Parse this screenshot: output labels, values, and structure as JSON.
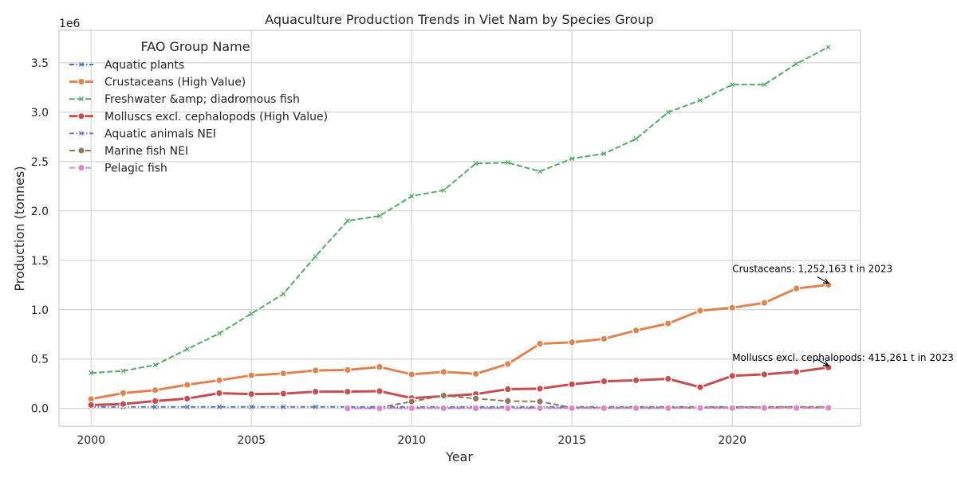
{
  "chart_data": {
    "type": "line",
    "title": "Aquaculture Production Trends in Viet Nam by Species Group",
    "xlabel": "Year",
    "ylabel": "Production (tonnes)",
    "y_scale_label": "1e6",
    "xlim": [
      1999,
      2024
    ],
    "ylim": [
      -180000,
      3830000
    ],
    "x_ticks": [
      2000,
      2005,
      2010,
      2015,
      2020
    ],
    "y_ticks": [
      0,
      500000,
      1000000,
      1500000,
      2000000,
      2500000,
      3000000,
      3500000
    ],
    "y_tick_labels": [
      "0.0",
      "0.5",
      "1.0",
      "1.5",
      "2.0",
      "2.5",
      "3.0",
      "3.5"
    ],
    "grid": true,
    "legend_title": "FAO Group Name",
    "legend_position": "upper-left",
    "series": [
      {
        "name": "Aquatic plants",
        "color": "#4c72b0",
        "style": "dashdot",
        "width": 2,
        "marker": "x",
        "x": [
          2000,
          2001,
          2002,
          2003,
          2004,
          2005,
          2006,
          2007,
          2008,
          2009,
          2010,
          2011,
          2012,
          2013,
          2014,
          2015,
          2016,
          2017,
          2018,
          2019,
          2020,
          2021,
          2022,
          2023
        ],
        "values": [
          15000,
          15000,
          15000,
          16000,
          16000,
          16000,
          16000,
          16000,
          16000,
          16000,
          16000,
          16000,
          16000,
          16000,
          16000,
          16000,
          16000,
          16000,
          16000,
          16000,
          16000,
          16000,
          16000,
          16000
        ]
      },
      {
        "name": "Crustaceans (High Value)",
        "color": "#dd8452",
        "style": "solid",
        "width": 3,
        "marker": "circle",
        "x": [
          2000,
          2001,
          2002,
          2003,
          2004,
          2005,
          2006,
          2007,
          2008,
          2009,
          2010,
          2011,
          2012,
          2013,
          2014,
          2015,
          2016,
          2017,
          2018,
          2019,
          2020,
          2021,
          2022,
          2023
        ],
        "values": [
          95000,
          155000,
          185000,
          240000,
          285000,
          335000,
          355000,
          385000,
          390000,
          420000,
          345000,
          370000,
          350000,
          450000,
          655000,
          670000,
          705000,
          790000,
          860000,
          990000,
          1020000,
          1070000,
          1215000,
          1252163
        ]
      },
      {
        "name": "Freshwater &amp; diadromous fish",
        "color": "#55a868",
        "style": "dashed",
        "width": 2,
        "marker": "x",
        "x": [
          2000,
          2001,
          2002,
          2003,
          2004,
          2005,
          2006,
          2007,
          2008,
          2009,
          2010,
          2011,
          2012,
          2013,
          2014,
          2015,
          2016,
          2017,
          2018,
          2019,
          2020,
          2021,
          2022,
          2023
        ],
        "values": [
          360000,
          380000,
          440000,
          600000,
          760000,
          960000,
          1160000,
          1540000,
          1900000,
          1950000,
          2150000,
          2210000,
          2480000,
          2490000,
          2400000,
          2530000,
          2580000,
          2730000,
          3000000,
          3120000,
          3280000,
          3280000,
          3490000,
          3660000
        ]
      },
      {
        "name": "Molluscs excl. cephalopods (High Value)",
        "color": "#c44e52",
        "style": "solid",
        "width": 3,
        "marker": "circle",
        "x": [
          2000,
          2001,
          2002,
          2003,
          2004,
          2005,
          2006,
          2007,
          2008,
          2009,
          2010,
          2011,
          2012,
          2013,
          2014,
          2015,
          2016,
          2017,
          2018,
          2019,
          2020,
          2021,
          2022,
          2023
        ],
        "values": [
          35000,
          45000,
          75000,
          100000,
          155000,
          145000,
          150000,
          170000,
          170000,
          175000,
          105000,
          125000,
          145000,
          195000,
          200000,
          245000,
          275000,
          285000,
          300000,
          215000,
          330000,
          345000,
          370000,
          415261
        ]
      },
      {
        "name": "Aquatic animals NEI",
        "color": "#8172b3",
        "style": "dashdot",
        "width": 2,
        "marker": "x",
        "x": [
          2008,
          2009,
          2010,
          2011,
          2012,
          2013,
          2014,
          2015,
          2016,
          2017,
          2018,
          2019,
          2020,
          2021,
          2022,
          2023
        ],
        "values": [
          2000,
          2000,
          3000,
          3000,
          3000,
          3000,
          3000,
          4000,
          4000,
          4000,
          5000,
          6000,
          7000,
          8000,
          8000,
          9000
        ]
      },
      {
        "name": "Marine fish NEI",
        "color": "#937860",
        "style": "dashed",
        "width": 2,
        "marker": "circle",
        "x": [
          2009,
          2010,
          2011,
          2012,
          2013,
          2014,
          2015,
          2016,
          2017,
          2018,
          2019,
          2020,
          2021,
          2022,
          2023
        ],
        "values": [
          10000,
          70000,
          130000,
          100000,
          75000,
          70000,
          8000,
          8000,
          8000,
          9000,
          10000,
          12000,
          13000,
          14000,
          15000
        ]
      },
      {
        "name": "Pelagic fish",
        "color": "#da8bc3",
        "style": "dashed",
        "width": 2,
        "marker": "circle",
        "x": [
          2008,
          2009,
          2010,
          2011,
          2012,
          2013,
          2014,
          2015,
          2016,
          2017,
          2018,
          2019,
          2020,
          2021,
          2022,
          2023
        ],
        "values": [
          1000,
          1000,
          2000,
          2000,
          2000,
          2000,
          2000,
          2000,
          3000,
          3000,
          3000,
          4000,
          4000,
          5000,
          5000,
          6000
        ]
      }
    ],
    "annotations": [
      {
        "text": "Crustaceans: 1,252,163 t in 2023",
        "x": 2020,
        "y": 1380000,
        "arrow_to": [
          2023,
          1252163
        ]
      },
      {
        "text": "Molluscs excl. cephalopods: 415,261 t in 2023",
        "x": 2020,
        "y": 480000,
        "arrow_to": [
          2023,
          415261
        ]
      }
    ]
  }
}
